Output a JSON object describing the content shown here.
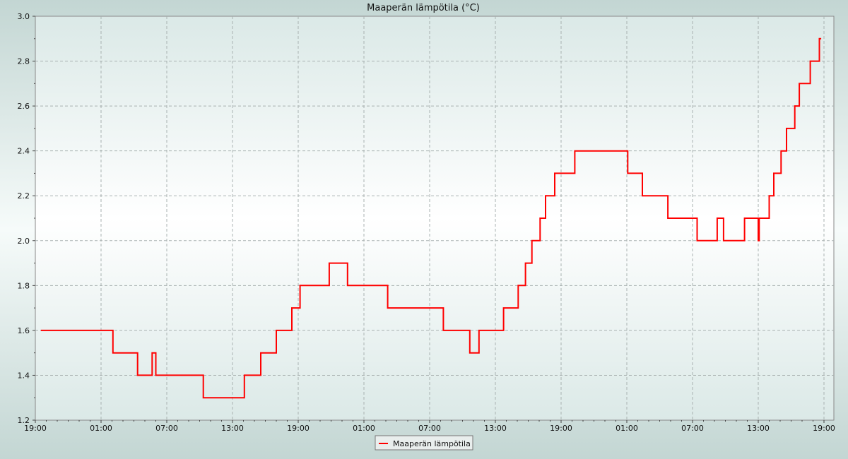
{
  "chart_data": {
    "type": "line",
    "title": "Maaperän lämpötila (°C)",
    "xlabel": "",
    "ylabel": "",
    "ylim": [
      1.2,
      3.0
    ],
    "yticks": [
      "1.2",
      "1.4",
      "1.6",
      "1.8",
      "2.0",
      "2.2",
      "2.4",
      "2.6",
      "2.8",
      "3.0"
    ],
    "xticks": [
      "19:00",
      "01:00",
      "07:00",
      "13:00",
      "19:00",
      "01:00",
      "07:00",
      "13:00",
      "19:00",
      "01:00",
      "07:00",
      "13:00",
      "19:00"
    ],
    "grid": true,
    "legend_position": "bottom-center",
    "series": [
      {
        "name": "Maaperän lämpötila",
        "color": "#ff0000",
        "points": [
          [
            "19:30",
            1.6
          ],
          [
            "02:00",
            1.6
          ],
          [
            "02:05",
            1.5
          ],
          [
            "04:15",
            1.5
          ],
          [
            "04:20",
            1.4
          ],
          [
            "05:40",
            1.5
          ],
          [
            "06:00",
            1.4
          ],
          [
            "10:15",
            1.4
          ],
          [
            "10:20",
            1.3
          ],
          [
            "11:30",
            1.3
          ],
          [
            "14:00",
            1.3
          ],
          [
            "14:05",
            1.4
          ],
          [
            "15:30",
            1.4
          ],
          [
            "15:35",
            1.5
          ],
          [
            "16:50",
            1.5
          ],
          [
            "17:00",
            1.6
          ],
          [
            "18:20",
            1.6
          ],
          [
            "18:25",
            1.7
          ],
          [
            "19:00",
            1.7
          ],
          [
            "19:10",
            1.8
          ],
          [
            "21:40",
            1.8
          ],
          [
            "21:50",
            1.9
          ],
          [
            "23:00",
            1.9
          ],
          [
            "23:30",
            1.8
          ],
          [
            "03:00",
            1.8
          ],
          [
            "03:10",
            1.7
          ],
          [
            "08:10",
            1.7
          ],
          [
            "08:15",
            1.6
          ],
          [
            "10:30",
            1.6
          ],
          [
            "10:40",
            1.5
          ],
          [
            "11:20",
            1.5
          ],
          [
            "11:30",
            1.6
          ],
          [
            "13:40",
            1.6
          ],
          [
            "13:45",
            1.7
          ],
          [
            "15:00",
            1.7
          ],
          [
            "15:05",
            1.8
          ],
          [
            "15:40",
            1.8
          ],
          [
            "15:45",
            1.9
          ],
          [
            "16:10",
            1.9
          ],
          [
            "16:20",
            2.0
          ],
          [
            "17:00",
            2.0
          ],
          [
            "17:05",
            2.1
          ],
          [
            "17:30",
            2.1
          ],
          [
            "17:35",
            2.2
          ],
          [
            "18:20",
            2.2
          ],
          [
            "18:25",
            2.3
          ],
          [
            "20:10",
            2.3
          ],
          [
            "20:15",
            2.4
          ],
          [
            "23:00",
            2.4
          ],
          [
            "01:00",
            2.4
          ],
          [
            "01:05",
            2.3
          ],
          [
            "02:20",
            2.3
          ],
          [
            "02:25",
            2.2
          ],
          [
            "04:40",
            2.2
          ],
          [
            "04:45",
            2.1
          ],
          [
            "07:20",
            2.1
          ],
          [
            "07:25",
            2.0
          ],
          [
            "09:10",
            2.0
          ],
          [
            "09:15",
            2.1
          ],
          [
            "09:50",
            2.0
          ],
          [
            "11:40",
            2.0
          ],
          [
            "11:45",
            2.1
          ],
          [
            "12:50",
            2.1
          ],
          [
            "13:00",
            2.0
          ],
          [
            "13:05",
            2.1
          ],
          [
            "13:55",
            2.1
          ],
          [
            "14:00",
            2.2
          ],
          [
            "14:20",
            2.2
          ],
          [
            "14:25",
            2.3
          ],
          [
            "15:00",
            2.3
          ],
          [
            "15:05",
            2.4
          ],
          [
            "15:30",
            2.4
          ],
          [
            "15:35",
            2.5
          ],
          [
            "16:10",
            2.5
          ],
          [
            "16:20",
            2.6
          ],
          [
            "16:40",
            2.6
          ],
          [
            "16:45",
            2.7
          ],
          [
            "17:40",
            2.7
          ],
          [
            "17:45",
            2.8
          ],
          [
            "18:30",
            2.8
          ],
          [
            "18:35",
            2.9
          ],
          [
            "18:45",
            2.9
          ]
        ]
      }
    ]
  }
}
